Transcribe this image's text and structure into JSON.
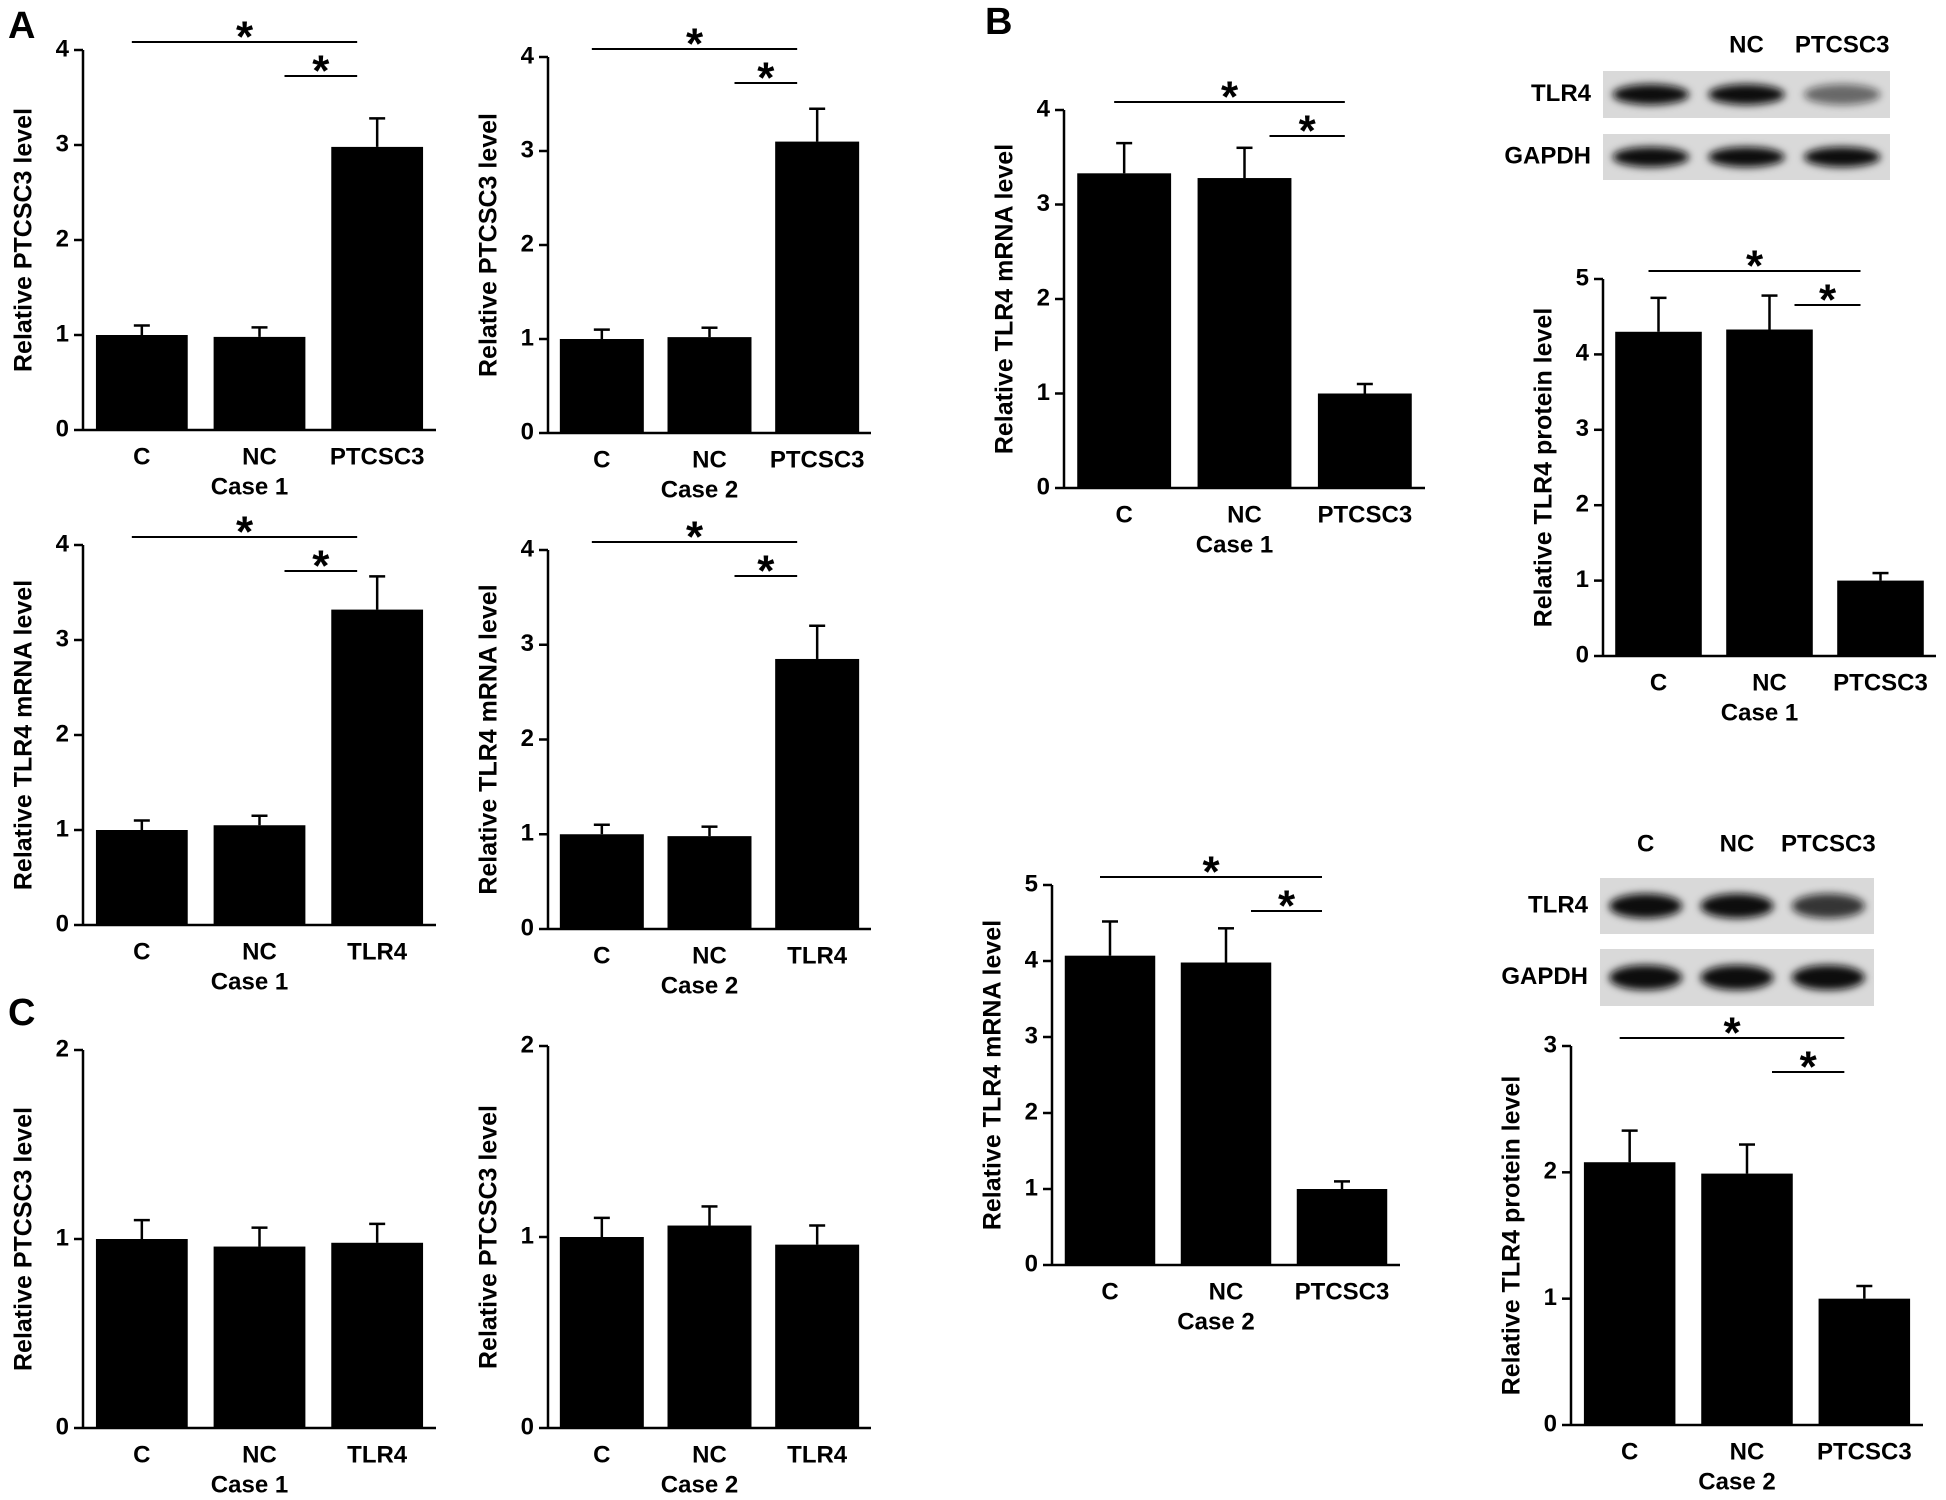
{
  "panel_labels": [
    "A",
    "B",
    "C"
  ],
  "blots": [
    {
      "lanes": [
        null,
        "NC",
        "PTCSC3"
      ],
      "rows": [
        "TLR4",
        "GAPDH"
      ]
    },
    {
      "lanes": [
        "C",
        "NC",
        "PTCSC3"
      ],
      "rows": [
        "TLR4",
        "GAPDH"
      ]
    }
  ],
  "chart_data": [
    {
      "type": "bar",
      "ylabel": "Relative PTCSC3 level",
      "xlabel": "Case 1",
      "categories": [
        "C",
        "NC",
        "PTCSC3"
      ],
      "values": [
        1.0,
        0.98,
        2.98
      ],
      "errors": [
        0.1,
        0.1,
        0.3
      ],
      "color": "#000000",
      "ylim": [
        0,
        4
      ],
      "yticks": [
        0,
        1,
        2,
        3,
        4
      ],
      "annotations": [
        "*",
        "*"
      ]
    },
    {
      "type": "bar",
      "ylabel": "Relative PTCSC3 level",
      "xlabel": "Case 2",
      "categories": [
        "C",
        "NC",
        "PTCSC3"
      ],
      "values": [
        1.0,
        1.02,
        3.1
      ],
      "errors": [
        0.1,
        0.1,
        0.35
      ],
      "color": "#000000",
      "ylim": [
        0,
        4
      ],
      "yticks": [
        0,
        1,
        2,
        3,
        4
      ],
      "annotations": [
        "*",
        "*"
      ]
    },
    {
      "type": "bar",
      "ylabel": "Relative TLR4 mRNA level",
      "xlabel": "Case 1",
      "categories": [
        "C",
        "NC",
        "TLR4"
      ],
      "values": [
        1.0,
        1.05,
        3.32
      ],
      "errors": [
        0.1,
        0.1,
        0.35
      ],
      "color": "#000000",
      "ylim": [
        0,
        4
      ],
      "yticks": [
        0,
        1,
        2,
        3,
        4
      ],
      "annotations": [
        "*",
        "*"
      ]
    },
    {
      "type": "bar",
      "ylabel": "Relative TLR4 mRNA level",
      "xlabel": "Case 2",
      "categories": [
        "C",
        "NC",
        "TLR4"
      ],
      "values": [
        1.0,
        0.98,
        2.85
      ],
      "errors": [
        0.1,
        0.1,
        0.35
      ],
      "color": "#000000",
      "ylim": [
        0,
        4
      ],
      "yticks": [
        0,
        1,
        2,
        3,
        4
      ],
      "annotations": [
        "*",
        "*"
      ]
    },
    {
      "type": "bar",
      "ylabel": "Relative PTCSC3 level",
      "xlabel": "Case 1",
      "categories": [
        "C",
        "NC",
        "TLR4"
      ],
      "values": [
        1.0,
        0.96,
        0.98
      ],
      "errors": [
        0.1,
        0.1,
        0.1
      ],
      "color": "#000000",
      "ylim": [
        0,
        2
      ],
      "yticks": [
        0,
        1,
        2
      ]
    },
    {
      "type": "bar",
      "ylabel": "Relative PTCSC3 level",
      "xlabel": "Case 2",
      "categories": [
        "C",
        "NC",
        "TLR4"
      ],
      "values": [
        1.0,
        1.06,
        0.96
      ],
      "errors": [
        0.1,
        0.1,
        0.1
      ],
      "color": "#000000",
      "ylim": [
        0,
        2
      ],
      "yticks": [
        0,
        1,
        2
      ]
    },
    {
      "type": "bar",
      "ylabel": "Relative TLR4 mRNA level",
      "xlabel": "Case 1",
      "categories": [
        "C",
        "NC",
        "PTCSC3"
      ],
      "values": [
        3.33,
        3.28,
        1.0
      ],
      "errors": [
        0.32,
        0.32,
        0.1
      ],
      "color": "#000000",
      "ylim": [
        0,
        4
      ],
      "yticks": [
        0,
        1,
        2,
        3,
        4
      ],
      "annotations": [
        "*",
        "*"
      ]
    },
    {
      "type": "bar",
      "ylabel": "Relative TLR4 protein level",
      "xlabel": "Case 1",
      "categories": [
        "C",
        "NC",
        "PTCSC3"
      ],
      "values": [
        4.3,
        4.33,
        1.0
      ],
      "errors": [
        0.45,
        0.45,
        0.1
      ],
      "color": "#000000",
      "ylim": [
        0,
        5
      ],
      "yticks": [
        0,
        1,
        2,
        3,
        4,
        5
      ],
      "annotations": [
        "*",
        "*"
      ]
    },
    {
      "type": "bar",
      "ylabel": "Relative TLR4 mRNA level",
      "xlabel": "Case 2",
      "categories": [
        "C",
        "NC",
        "PTCSC3"
      ],
      "values": [
        4.07,
        3.98,
        1.0
      ],
      "errors": [
        0.45,
        0.45,
        0.1
      ],
      "color": "#000000",
      "ylim": [
        0,
        5
      ],
      "yticks": [
        0,
        1,
        2,
        3,
        4,
        5
      ],
      "annotations": [
        "*",
        "*"
      ]
    },
    {
      "type": "bar",
      "ylabel": "Relative TLR4 protein level",
      "xlabel": "Case 2",
      "categories": [
        "C",
        "NC",
        "PTCSC3"
      ],
      "values": [
        2.08,
        1.99,
        1.0
      ],
      "errors": [
        0.25,
        0.23,
        0.1
      ],
      "color": "#000000",
      "ylim": [
        0,
        3
      ],
      "yticks": [
        0,
        1,
        2,
        3
      ],
      "annotations": [
        "*",
        "*"
      ]
    }
  ]
}
